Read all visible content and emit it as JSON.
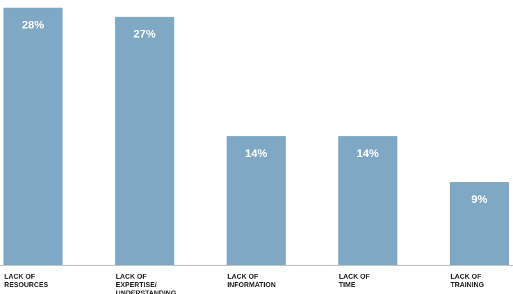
{
  "chart_data": {
    "type": "bar",
    "categories": [
      [
        "LACK OF",
        "RESOURCES"
      ],
      [
        "LACK OF",
        "EXPERTISE/",
        "UNDERSTANDING"
      ],
      [
        "LACK OF",
        "INFORMATION"
      ],
      [
        "LACK OF",
        "TIME"
      ],
      [
        "LACK OF",
        "TRAINING"
      ]
    ],
    "values": [
      28,
      27,
      14,
      14,
      9
    ],
    "value_labels": [
      "28%",
      "27%",
      "14%",
      "14%",
      "9%"
    ],
    "title": "",
    "xlabel": "",
    "ylabel": "",
    "ylim": [
      0,
      28
    ],
    "grid": false,
    "legend": "none",
    "bar_color": "#7fa8c4",
    "baseline_color": "#8c8c8c"
  }
}
